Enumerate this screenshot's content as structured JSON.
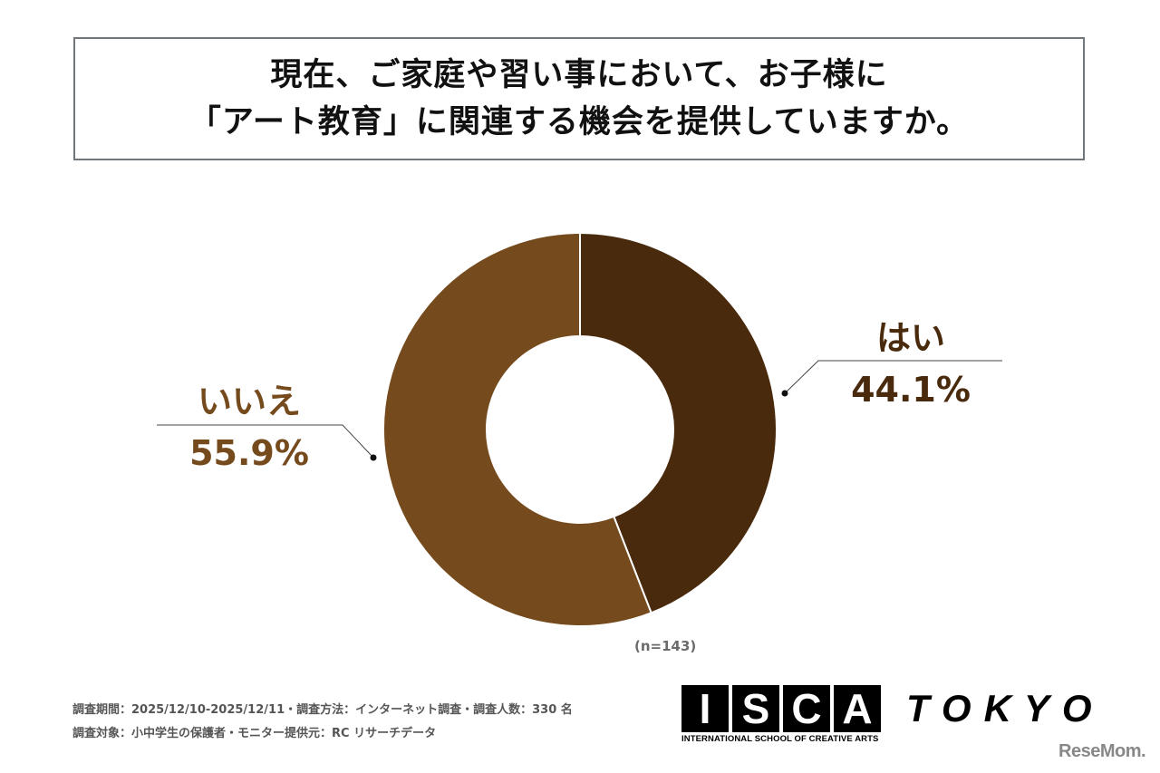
{
  "title": {
    "line1": "現在、ご家庭や習い事において、お子様に",
    "line2": "「アート教育」に関連する機会を提供していますか。"
  },
  "chart_data": {
    "type": "pie",
    "variant": "donut",
    "title": "現在、ご家庭や習い事において、お子様に「アート教育」に関連する機会を提供していますか。",
    "categories": [
      "はい",
      "いいえ"
    ],
    "values": [
      44.1,
      55.9
    ],
    "labels": [
      "44.1%",
      "55.9%"
    ],
    "colors": [
      "#4a2a0c",
      "#754a1d"
    ],
    "sample_size": "(n=143)",
    "start_angle": "12 o'clock, clockwise",
    "legend": "none (callout labels)"
  },
  "labels": {
    "yes": {
      "name": "はい",
      "pct": "44.1%",
      "color": "#4a2a0c"
    },
    "no": {
      "name": "いいえ",
      "pct": "55.9%",
      "color": "#754a1d"
    }
  },
  "n_label": "(n=143)",
  "footer": {
    "line1": "調査期間：2025/12/10-2025/12/11・調査方法：インターネット調査・調査人数：330 名",
    "line2": "調査対象：小中学生の保護者・モニター提供元：RC リサーチデータ"
  },
  "logo": {
    "letters": [
      "I",
      "S",
      "C",
      "A"
    ],
    "tagline": "INTERNATIONAL SCHOOL OF CREATIVE ARTS",
    "city": "TOKYO"
  },
  "watermark": "ReseMom."
}
